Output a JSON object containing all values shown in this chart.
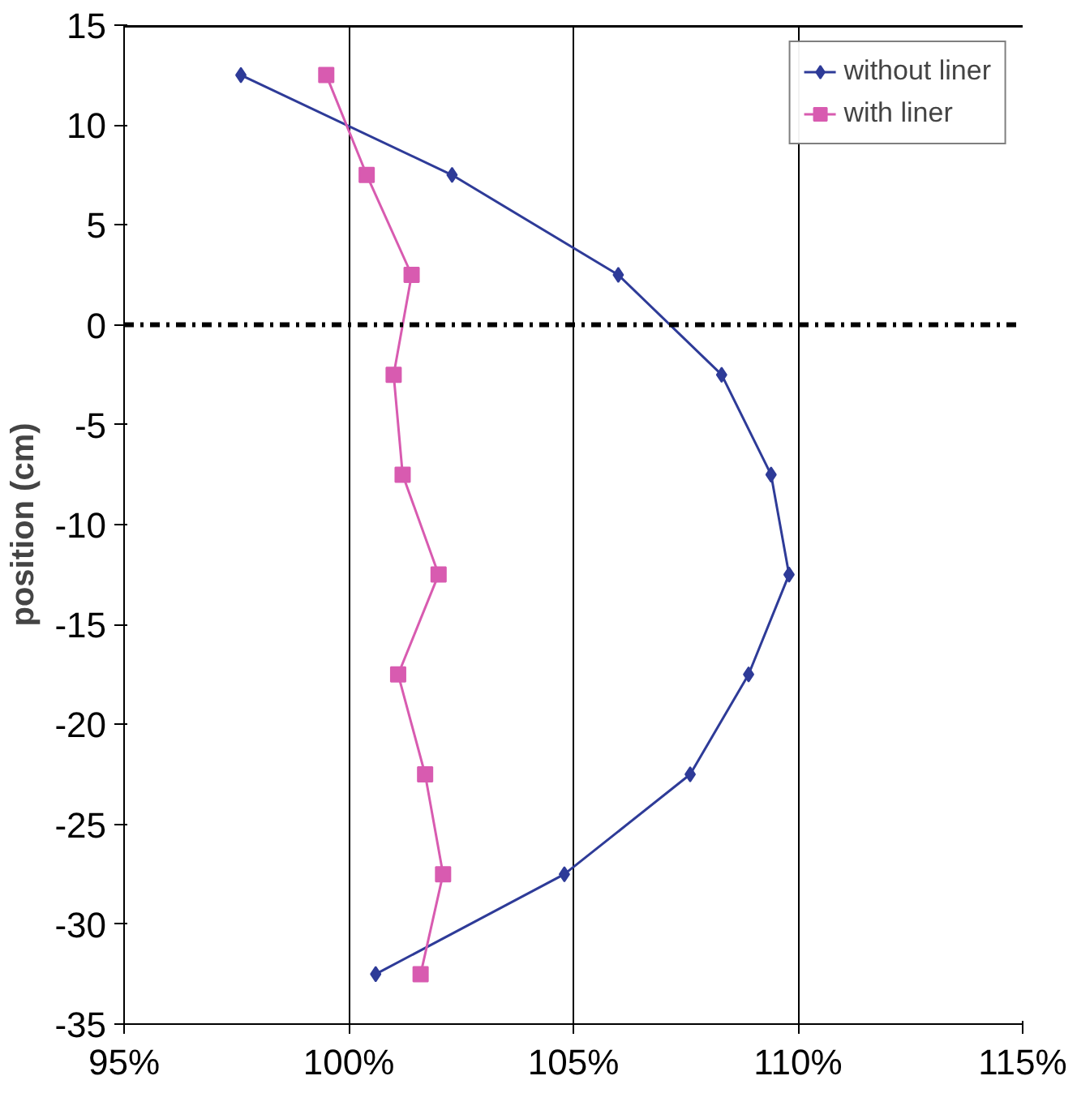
{
  "chart_data": {
    "type": "line",
    "ylabel": "position (cm)",
    "xlim": [
      95,
      115
    ],
    "xticks": [
      {
        "value": 95,
        "label": "95%"
      },
      {
        "value": 100,
        "label": "100%"
      },
      {
        "value": 105,
        "label": "105%"
      },
      {
        "value": 110,
        "label": "110%"
      },
      {
        "value": 115,
        "label": "115%"
      }
    ],
    "ylim": [
      -35,
      15
    ],
    "yticks": [
      -35,
      -30,
      -25,
      -20,
      -15,
      -10,
      -5,
      0,
      5,
      10,
      15
    ],
    "grid": "x",
    "legend": "top right",
    "series": [
      {
        "name": "without liner",
        "color": "#2e3b98",
        "marker": "diamond",
        "x": [
          97.6,
          102.3,
          106.0,
          108.3,
          109.4,
          109.8,
          108.9,
          107.6,
          104.8,
          100.6
        ],
        "values": [
          12.5,
          7.5,
          2.5,
          -2.5,
          -7.5,
          -12.5,
          -17.5,
          -22.5,
          -27.5,
          -32.5
        ]
      },
      {
        "name": "with liner",
        "color": "#d85bb0",
        "marker": "square",
        "x": [
          99.5,
          100.4,
          101.4,
          101.0,
          101.2,
          102.0,
          101.1,
          101.7,
          102.1,
          101.6
        ],
        "values": [
          12.5,
          7.5,
          2.5,
          -2.5,
          -7.5,
          -12.5,
          -17.5,
          -22.5,
          -27.5,
          -32.5
        ]
      }
    ],
    "ref_lines": [
      {
        "axis": "y",
        "value": 0,
        "color": "#000000",
        "line_style": "dashdot"
      },
      {
        "axis": "y",
        "value": 15,
        "color": "#000000",
        "line_style": "solid"
      }
    ]
  }
}
